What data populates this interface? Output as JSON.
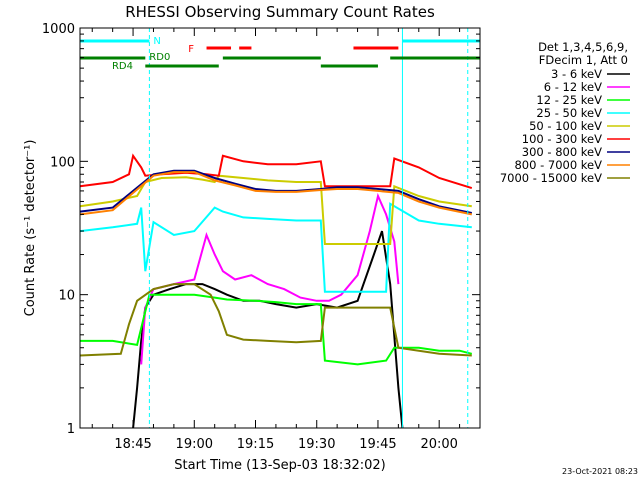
{
  "chart_data": {
    "type": "line",
    "title": "RHESSI Observing Summary Count Rates",
    "xlabel": "Start Time (13-Sep-03 18:32:02)",
    "ylabel": "Count Rate (s⁻¹ detector⁻¹)",
    "y_scale": "log",
    "ylim": [
      1,
      1000
    ],
    "xlim": [
      "18:32",
      "20:10"
    ],
    "x_ticks": [
      "18:45",
      "19:00",
      "19:15",
      "19:30",
      "19:45",
      "20:00"
    ],
    "y_ticks": [
      "1",
      "10",
      "100",
      "1000"
    ],
    "legend_header": [
      "Det 1,3,4,5,6,9,",
      "FDecim 1, Att 0"
    ],
    "legend_position": "right",
    "stamp": "23-Oct-2021 08:23",
    "flags": [
      {
        "name": "N",
        "color": "#00ffff",
        "intervals": [
          [
            "18:32",
            "18:49"
          ],
          [
            "19:51",
            "20:10"
          ]
        ]
      },
      {
        "name": "F",
        "color": "#ff0000",
        "intervals": [
          [
            "19:03",
            "19:09"
          ],
          [
            "19:11",
            "19:14"
          ],
          [
            "19:39",
            "19:50"
          ]
        ]
      },
      {
        "name": "RD0",
        "color": "#008000",
        "intervals": [
          [
            "18:32",
            "18:48"
          ],
          [
            "19:07",
            "19:31"
          ],
          [
            "19:48",
            "20:10"
          ]
        ]
      },
      {
        "name": "RD4",
        "color": "#008000",
        "intervals": [
          [
            "18:48",
            "19:06"
          ],
          [
            "19:31",
            "19:45"
          ]
        ]
      }
    ],
    "vlines": [
      {
        "time": "18:49",
        "style": "dashed",
        "color": "#00ffff"
      },
      {
        "time": "19:51",
        "style": "solid",
        "color": "#00ffff"
      },
      {
        "time": "20:07",
        "style": "dashed",
        "color": "#00ffff"
      }
    ],
    "series": [
      {
        "name": "3 - 6 keV",
        "color": "#000000",
        "points": [
          [
            "18:45",
            1.0
          ],
          [
            "18:46",
            2.0
          ],
          [
            "18:47",
            4.5
          ],
          [
            "18:48",
            8
          ],
          [
            "18:50",
            10
          ],
          [
            "18:54",
            11
          ],
          [
            "18:58",
            12
          ],
          [
            "19:02",
            12
          ],
          [
            "19:05",
            11
          ],
          [
            "19:08",
            10
          ],
          [
            "19:12",
            9
          ],
          [
            "19:16",
            9
          ],
          [
            "19:20",
            8.5
          ],
          [
            "19:25",
            8
          ],
          [
            "19:30",
            8.5
          ],
          [
            "19:35",
            8
          ],
          [
            "19:40",
            9
          ],
          [
            "19:44",
            20
          ],
          [
            "19:46",
            30
          ],
          [
            "19:48",
            12
          ],
          [
            "19:50",
            2
          ],
          [
            "19:51",
            1.0
          ]
        ]
      },
      {
        "name": "6 - 12 keV",
        "color": "#ff00ff",
        "points": [
          [
            "18:47",
            3
          ],
          [
            "18:48",
            8
          ],
          [
            "18:50",
            11
          ],
          [
            "18:55",
            12
          ],
          [
            "19:00",
            13
          ],
          [
            "19:03",
            28
          ],
          [
            "19:05",
            20
          ],
          [
            "19:07",
            15
          ],
          [
            "19:10",
            13
          ],
          [
            "19:14",
            14
          ],
          [
            "19:18",
            12
          ],
          [
            "19:22",
            11
          ],
          [
            "19:26",
            9.5
          ],
          [
            "19:30",
            9
          ],
          [
            "19:33",
            9
          ],
          [
            "19:36",
            10
          ],
          [
            "19:40",
            14
          ],
          [
            "19:43",
            30
          ],
          [
            "19:45",
            55
          ],
          [
            "19:47",
            40
          ],
          [
            "19:49",
            25
          ],
          [
            "19:50",
            12
          ]
        ]
      },
      {
        "name": "12 - 25 keV",
        "color": "#00ff00",
        "points": [
          [
            "18:32",
            4.5
          ],
          [
            "18:40",
            4.5
          ],
          [
            "18:46",
            4.2
          ],
          [
            "18:49",
            10
          ],
          [
            "18:55",
            10
          ],
          [
            "19:00",
            10
          ],
          [
            "19:05",
            9.5
          ],
          [
            "19:08",
            9.2
          ],
          [
            "19:15",
            9
          ],
          [
            "19:20",
            8.8
          ],
          [
            "19:25",
            8.5
          ],
          [
            "19:31",
            8.5
          ],
          [
            "19:32",
            3.2
          ],
          [
            "19:40",
            3.0
          ],
          [
            "19:47",
            3.2
          ],
          [
            "19:49",
            4.0
          ],
          [
            "19:55",
            4.0
          ],
          [
            "20:00",
            3.8
          ],
          [
            "20:05",
            3.8
          ],
          [
            "20:08",
            3.6
          ]
        ]
      },
      {
        "name": "25 - 50 keV",
        "color": "#00ffff",
        "points": [
          [
            "18:32",
            30
          ],
          [
            "18:40",
            32
          ],
          [
            "18:46",
            34
          ],
          [
            "18:47",
            45
          ],
          [
            "18:48",
            15
          ],
          [
            "18:50",
            35
          ],
          [
            "18:55",
            28
          ],
          [
            "19:00",
            30
          ],
          [
            "19:05",
            45
          ],
          [
            "19:07",
            42
          ],
          [
            "19:12",
            38
          ],
          [
            "19:18",
            37
          ],
          [
            "19:25",
            36
          ],
          [
            "19:31",
            36
          ],
          [
            "19:32",
            10.5
          ],
          [
            "19:40",
            10.5
          ],
          [
            "19:45",
            10.5
          ],
          [
            "19:47",
            10.5
          ],
          [
            "19:48",
            48
          ],
          [
            "19:55",
            36
          ],
          [
            "20:00",
            34
          ],
          [
            "20:08",
            32
          ]
        ]
      },
      {
        "name": "50 - 100 keV",
        "color": "#cccc00",
        "points": [
          [
            "18:32",
            46
          ],
          [
            "18:40",
            50
          ],
          [
            "18:46",
            55
          ],
          [
            "18:48",
            70
          ],
          [
            "18:52",
            75
          ],
          [
            "18:58",
            76
          ],
          [
            "19:02",
            73
          ],
          [
            "19:05",
            70
          ],
          [
            "19:06",
            78
          ],
          [
            "19:12",
            75
          ],
          [
            "19:18",
            72
          ],
          [
            "19:25",
            70
          ],
          [
            "19:31",
            70
          ],
          [
            "19:32",
            24
          ],
          [
            "19:40",
            24
          ],
          [
            "19:45",
            24
          ],
          [
            "19:48",
            24
          ],
          [
            "19:49",
            65
          ],
          [
            "19:55",
            55
          ],
          [
            "20:00",
            50
          ],
          [
            "20:08",
            46
          ]
        ]
      },
      {
        "name": "100 - 300 keV",
        "color": "#ff0000",
        "points": [
          [
            "18:32",
            65
          ],
          [
            "18:40",
            70
          ],
          [
            "18:44",
            80
          ],
          [
            "18:45",
            110
          ],
          [
            "18:47",
            90
          ],
          [
            "18:48",
            78
          ],
          [
            "18:52",
            80
          ],
          [
            "18:58",
            82
          ],
          [
            "19:03",
            80
          ],
          [
            "19:06",
            78
          ],
          [
            "19:07",
            110
          ],
          [
            "19:12",
            100
          ],
          [
            "19:18",
            95
          ],
          [
            "19:25",
            95
          ],
          [
            "19:31",
            100
          ],
          [
            "19:32",
            65
          ],
          [
            "19:40",
            65
          ],
          [
            "19:45",
            65
          ],
          [
            "19:48",
            65
          ],
          [
            "19:49",
            105
          ],
          [
            "19:55",
            90
          ],
          [
            "20:00",
            75
          ],
          [
            "20:08",
            63
          ]
        ]
      },
      {
        "name": "300 - 800 keV",
        "color": "#000080",
        "points": [
          [
            "18:32",
            42
          ],
          [
            "18:40",
            45
          ],
          [
            "18:45",
            60
          ],
          [
            "18:50",
            80
          ],
          [
            "18:55",
            85
          ],
          [
            "19:00",
            85
          ],
          [
            "19:05",
            75
          ],
          [
            "19:10",
            68
          ],
          [
            "19:15",
            62
          ],
          [
            "19:20",
            60
          ],
          [
            "19:25",
            60
          ],
          [
            "19:31",
            62
          ],
          [
            "19:35",
            64
          ],
          [
            "19:40",
            64
          ],
          [
            "19:45",
            62
          ],
          [
            "19:50",
            60
          ],
          [
            "19:55",
            52
          ],
          [
            "20:00",
            46
          ],
          [
            "20:08",
            41
          ]
        ]
      },
      {
        "name": "800 - 7000 keV",
        "color": "#ff8000",
        "points": [
          [
            "18:32",
            40
          ],
          [
            "18:40",
            43
          ],
          [
            "18:45",
            58
          ],
          [
            "18:50",
            78
          ],
          [
            "18:55",
            83
          ],
          [
            "19:00",
            83
          ],
          [
            "19:05",
            72
          ],
          [
            "19:10",
            66
          ],
          [
            "19:15",
            60
          ],
          [
            "19:20",
            59
          ],
          [
            "19:25",
            59
          ],
          [
            "19:31",
            61
          ],
          [
            "19:35",
            62
          ],
          [
            "19:40",
            62
          ],
          [
            "19:45",
            60
          ],
          [
            "19:50",
            58
          ],
          [
            "19:55",
            50
          ],
          [
            "20:00",
            45
          ],
          [
            "20:08",
            40
          ]
        ]
      },
      {
        "name": "7000 - 15000 keV",
        "color": "#808000",
        "points": [
          [
            "18:32",
            3.5
          ],
          [
            "18:42",
            3.6
          ],
          [
            "18:44",
            6
          ],
          [
            "18:46",
            9
          ],
          [
            "18:50",
            11
          ],
          [
            "18:55",
            12
          ],
          [
            "19:00",
            12
          ],
          [
            "19:04",
            10
          ],
          [
            "19:06",
            7.5
          ],
          [
            "19:08",
            5
          ],
          [
            "19:12",
            4.6
          ],
          [
            "19:18",
            4.5
          ],
          [
            "19:25",
            4.4
          ],
          [
            "19:31",
            4.5
          ],
          [
            "19:32",
            8
          ],
          [
            "19:40",
            8
          ],
          [
            "19:48",
            8
          ],
          [
            "19:50",
            4.0
          ],
          [
            "19:55",
            3.8
          ],
          [
            "20:00",
            3.6
          ],
          [
            "20:08",
            3.5
          ]
        ]
      }
    ]
  }
}
